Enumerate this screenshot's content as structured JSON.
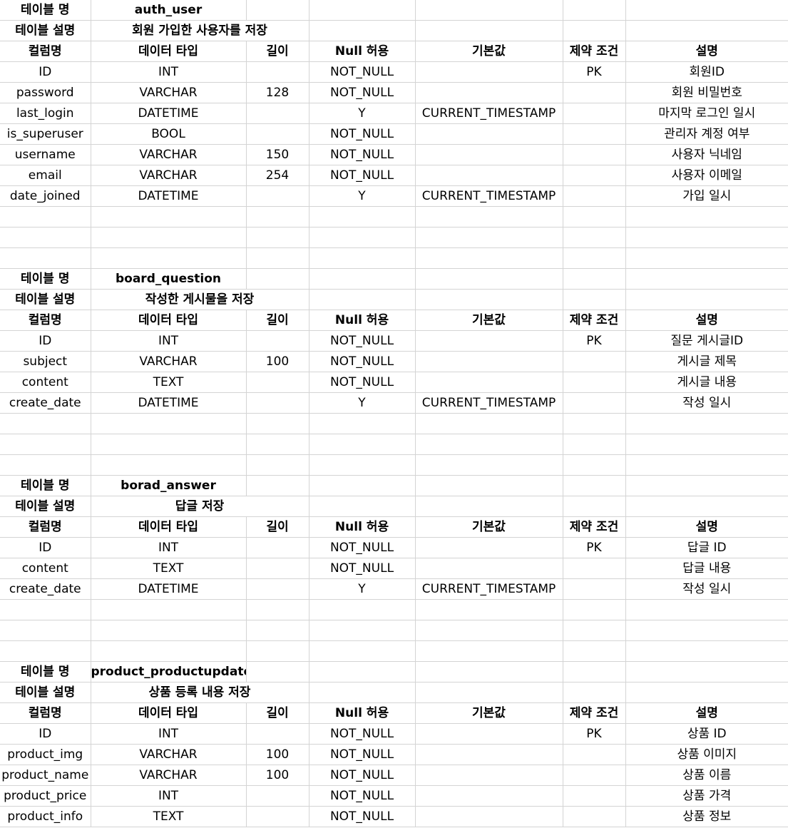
{
  "headers": [
    "컬럼명",
    "데이터 타입",
    "길이",
    "Null 허용",
    "기본값",
    "제약 조건",
    "설명"
  ],
  "name_label": "테이블 명",
  "desc_label": "테이블 설명",
  "tables": [
    {
      "name": "auth_user",
      "description": "회원 가입한 사용자를 저장",
      "rows": [
        [
          "ID",
          "INT",
          "",
          "NOT_NULL",
          "",
          "PK",
          "회원ID"
        ],
        [
          "password",
          "VARCHAR",
          "128",
          "NOT_NULL",
          "",
          "",
          "회원 비밀번호"
        ],
        [
          "last_login",
          "DATETIME",
          "",
          "Y",
          "CURRENT_TIMESTAMP",
          "",
          "마지막 로그인 일시"
        ],
        [
          "is_superuser",
          "BOOL",
          "",
          "NOT_NULL",
          "",
          "",
          "관리자 계정 여부"
        ],
        [
          "username",
          "VARCHAR",
          "150",
          "NOT_NULL",
          "",
          "",
          "사용자 닉네임"
        ],
        [
          "email",
          "VARCHAR",
          "254",
          "NOT_NULL",
          "",
          "",
          "사용자 이메일"
        ],
        [
          "date_joined",
          "DATETIME",
          "",
          "Y",
          "CURRENT_TIMESTAMP",
          "",
          "가입 일시"
        ]
      ]
    },
    {
      "name": "board_question",
      "description": "작성한 게시물을 저장",
      "rows": [
        [
          "ID",
          "INT",
          "",
          "NOT_NULL",
          "",
          "PK",
          "질문 게시글ID"
        ],
        [
          "subject",
          "VARCHAR",
          "100",
          "NOT_NULL",
          "",
          "",
          "게시글 제목"
        ],
        [
          "content",
          "TEXT",
          "",
          "NOT_NULL",
          "",
          "",
          "게시글 내용"
        ],
        [
          "create_date",
          "DATETIME",
          "",
          "Y",
          "CURRENT_TIMESTAMP",
          "",
          "작성 일시"
        ]
      ]
    },
    {
      "name": "borad_answer",
      "description": "답글 저장",
      "rows": [
        [
          "ID",
          "INT",
          "",
          "NOT_NULL",
          "",
          "PK",
          "답글 ID"
        ],
        [
          "content",
          "TEXT",
          "",
          "NOT_NULL",
          "",
          "",
          "답글 내용"
        ],
        [
          "create_date",
          "DATETIME",
          "",
          "Y",
          "CURRENT_TIMESTAMP",
          "",
          "작성 일시"
        ]
      ]
    },
    {
      "name": "product_productupdate",
      "description": "상품 등록 내용 저장",
      "rows": [
        [
          "ID",
          "INT",
          "",
          "NOT_NULL",
          "",
          "PK",
          "상품 ID"
        ],
        [
          "product_img",
          "VARCHAR",
          "100",
          "NOT_NULL",
          "",
          "",
          "상품 이미지"
        ],
        [
          "product_name",
          "VARCHAR",
          "100",
          "NOT_NULL",
          "",
          "",
          "상품 이름"
        ],
        [
          "product_price",
          "INT",
          "",
          "NOT_NULL",
          "",
          "",
          "상품 가격"
        ],
        [
          "product_info",
          "TEXT",
          "",
          "NOT_NULL",
          "",
          "",
          "상품 정보"
        ]
      ]
    }
  ]
}
